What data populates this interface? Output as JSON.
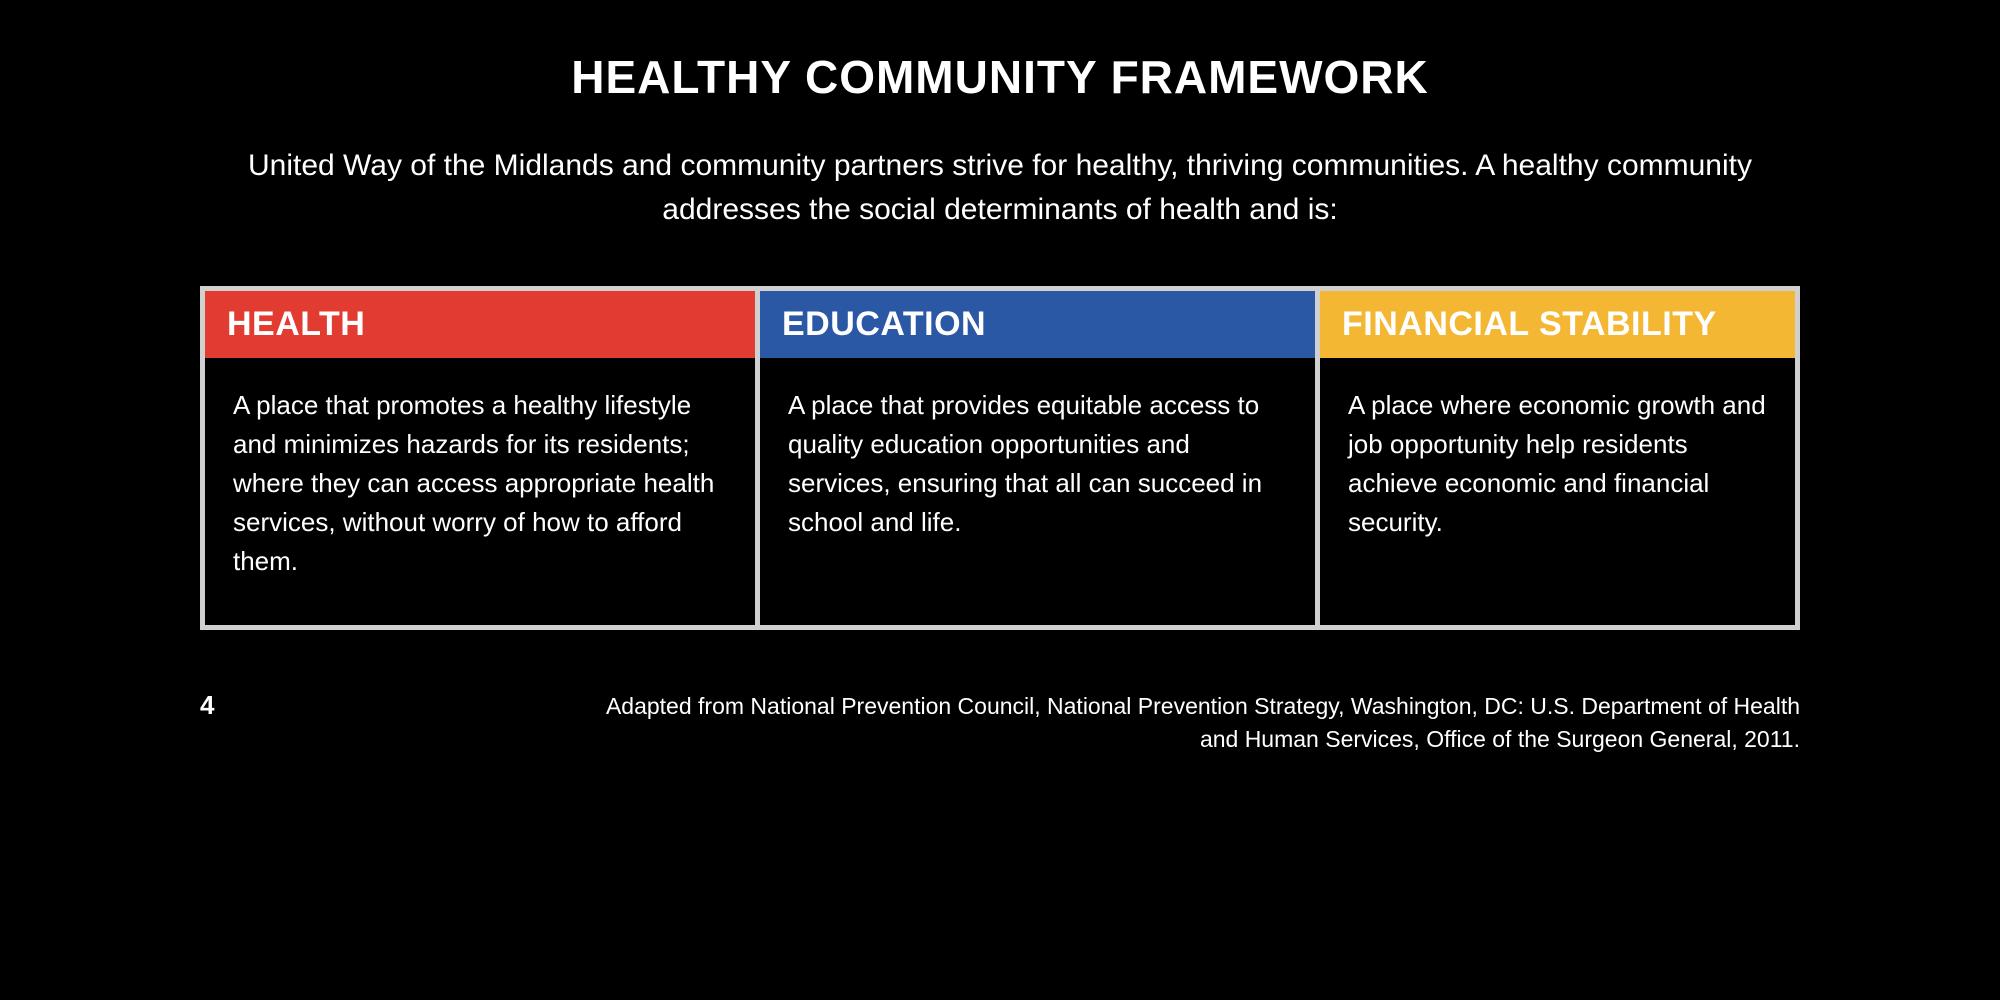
{
  "title": "HEALTHY COMMUNITY FRAMEWORK",
  "subtitle": "United Way of the Midlands and community partners strive for healthy, thriving communities. A healthy community addresses the social determinants of health and is:",
  "columns": [
    {
      "label": "HEALTH",
      "header_bg": "#e23b32",
      "body": "A place that promotes a healthy lifestyle and minimizes hazards for its residents; where they can access appropriate health services, without worry of how to afford them."
    },
    {
      "label": "EDUCATION",
      "header_bg": "#2a58a4",
      "body": "A place that provides equitable access to quality education opportunities and services, ensuring that all can succeed in school and life."
    },
    {
      "label": "FINANCIAL STABILITY",
      "header_bg": "#f3b733",
      "body": "A place where economic growth and job opportunity help residents achieve economic and financial security."
    }
  ],
  "footer": {
    "page_number": "4",
    "reference": "Adapted from National Prevention Council, National Prevention Strategy, Washington, DC: U.S. Department of Health and Human Services, Office of the Surgeon General, 2011."
  },
  "styling": {
    "background_color": "#000000",
    "border_color": "#d0d0d0",
    "text_color": "#ffffff",
    "title_fontsize": 46,
    "subtitle_fontsize": 30,
    "header_fontsize": 34,
    "body_fontsize": 26,
    "footer_fontsize": 23,
    "border_width": 5
  }
}
